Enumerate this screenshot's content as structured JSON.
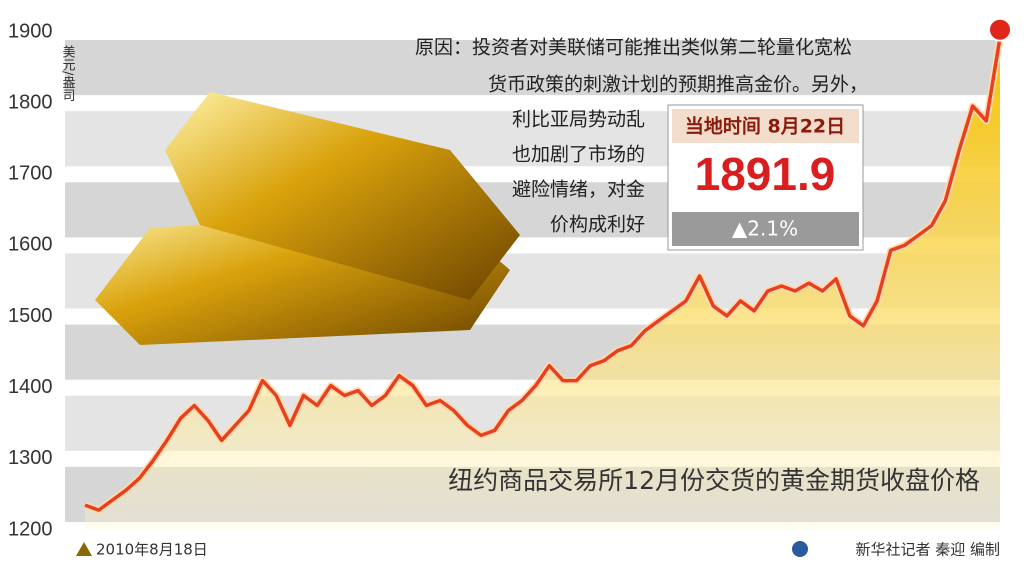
{
  "chart_data": {
    "type": "line",
    "unit": "美元/盎司",
    "categories": [
      "2010年8月18日",
      null,
      null,
      null,
      null,
      null,
      null,
      null,
      null,
      null,
      null,
      null,
      null,
      null,
      null,
      null,
      null,
      null,
      null,
      null,
      null,
      null,
      null,
      null,
      null,
      null,
      null,
      null,
      null,
      null,
      null,
      null,
      null,
      null,
      null,
      null,
      null,
      null,
      null,
      null,
      null,
      null,
      null,
      null,
      null,
      null,
      null,
      null,
      null,
      null,
      null,
      null,
      null,
      null,
      null,
      null,
      null,
      null,
      null,
      null,
      null,
      null,
      null,
      null,
      null,
      null,
      null,
      null
    ],
    "series": [
      {
        "name": "纽约商品交易所12月份交货的黄金期货收盘价格",
        "color": "#e8401c",
        "values": [
          1235,
          1228,
          1242,
          1256,
          1273,
          1298,
          1326,
          1357,
          1375,
          1354,
          1326,
          1347,
          1368,
          1410,
          1389,
          1347,
          1389,
          1375,
          1403,
          1389,
          1396,
          1375,
          1389,
          1417,
          1403,
          1375,
          1382,
          1368,
          1347,
          1333,
          1340,
          1368,
          1382,
          1403,
          1431,
          1410,
          1410,
          1431,
          1438,
          1452,
          1459,
          1480,
          1494,
          1508,
          1522,
          1557,
          1515,
          1501,
          1522,
          1508,
          1536,
          1543,
          1536,
          1547,
          1536,
          1553,
          1501,
          1487,
          1522,
          1593,
          1600,
          1614,
          1628,
          1663,
          1733,
          1796,
          1775,
          1892
        ]
      }
    ],
    "ylim": [
      1200,
      1900
    ],
    "yticks": [
      1200,
      1300,
      1400,
      1500,
      1600,
      1700,
      1800,
      1900
    ],
    "grid": true,
    "annotation": {
      "lines": [
        "原因：投资者对美联储可能推出类似第二轮量化宽松",
        "货币政策的刺激计划的预期推高金价。另外，",
        "利比亚局势动乱",
        "也加剧了市场的",
        "避险情绪，对金",
        "价构成利好"
      ]
    },
    "callout": {
      "date": "当地时间 8月22日",
      "price": "1891.9",
      "change": "▲2.1%"
    },
    "credit": "新华社记者 秦迎 编制"
  }
}
